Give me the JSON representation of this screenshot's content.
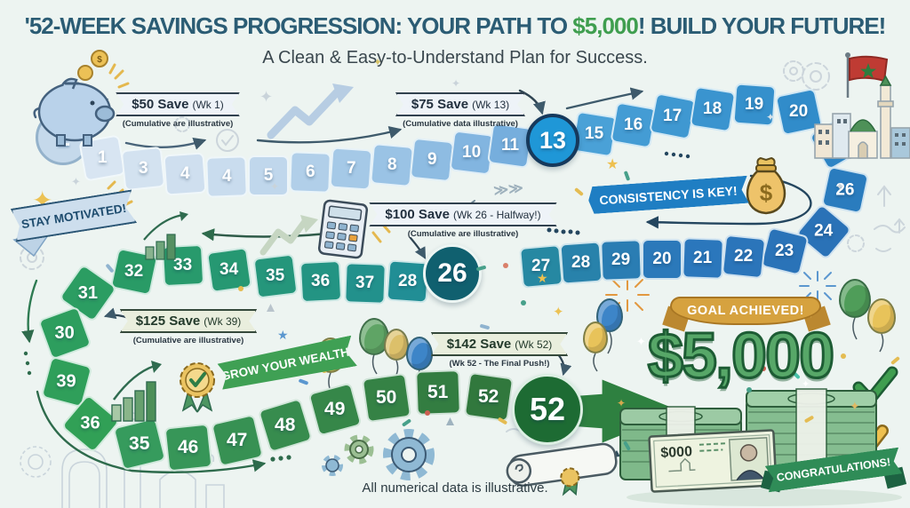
{
  "header": {
    "title_prefix": "'52-WEEK SAVINGS PROGRESSION: YOUR PATH TO ",
    "title_amount": "$5,000",
    "title_suffix": "! BUILD YOUR FUTURE!",
    "subtitle": "A Clean & Easy-to-Understand Plan for Success."
  },
  "start_label": "1",
  "board": {
    "cells": [
      "1",
      "3",
      "4",
      "4",
      "5",
      "6",
      "7",
      "8",
      "9",
      "10",
      "11",
      "13",
      "15",
      "16",
      "17",
      "18",
      "19",
      "20",
      "21",
      "26",
      "24",
      "23",
      "22",
      "21",
      "20",
      "29",
      "28",
      "27",
      "26",
      "28",
      "37",
      "36",
      "35",
      "34",
      "33",
      "32",
      "31",
      "30",
      "39",
      "36",
      "35",
      "46",
      "47",
      "48",
      "49",
      "50",
      "51",
      "52",
      "52"
    ]
  },
  "callouts": [
    {
      "amount": "$50 Save",
      "week": "(Wk 1)",
      "note": "(Cumulative are illustrative)"
    },
    {
      "amount": "$75 Save",
      "week": "(Wk 13)",
      "note": "(Cumulative data illustrative)"
    },
    {
      "amount": "$100 Save",
      "week": "(Wk 26 - Halfway!)",
      "note": "(Cumulative are illustrative)"
    },
    {
      "amount": "$125 Save",
      "week": "(Wk 39)",
      "note": "(Cumulative are illustrative)"
    },
    {
      "amount": "$142 Save",
      "week": "(Wk 52)",
      "note": "(Wk 52 - The Final Push!)"
    }
  ],
  "banners": {
    "stay_motivated": "STAY MOTIVATED!",
    "consistency": "CONSISTENCY IS KEY!",
    "grow_wealth": "GROW YOUR WEALTH!"
  },
  "goal": {
    "banner": "GOAL ACHIEVED!",
    "amount": "$5,000",
    "congratulations": "CONGRATULATIONS!"
  },
  "banknote_label": "$000",
  "footer": "All numerical data is illustrative.",
  "colors": {
    "background": "#edf4f1",
    "title": "#2b5c74",
    "accent_green": "#3f9e4f",
    "gold": "#d6a23f",
    "path_blue": "#1f97d7",
    "path_teal": "#10606f",
    "path_green": "#1d6b33"
  }
}
